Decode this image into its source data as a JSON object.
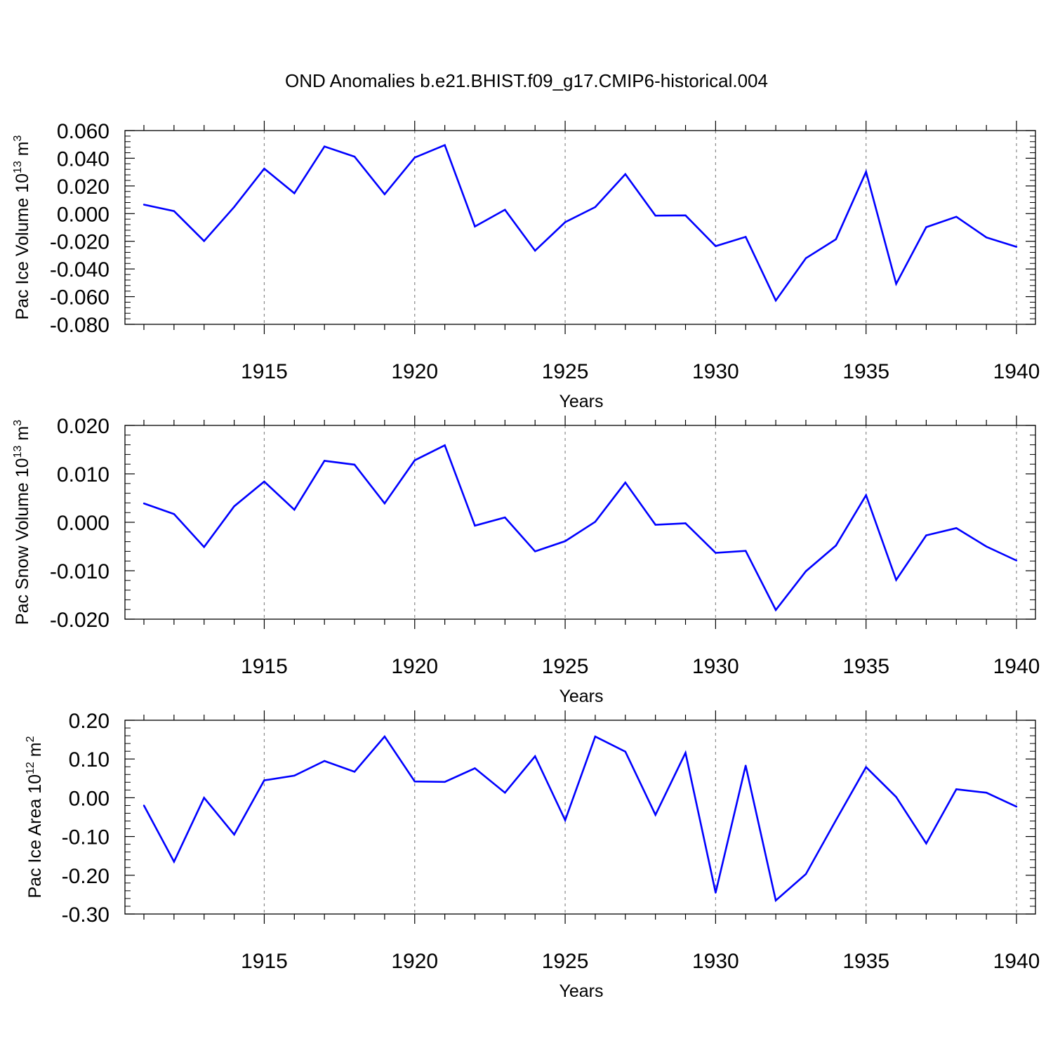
{
  "title": "OND Anomalies b.e21.BHIST.f09_g17.CMIP6-historical.004",
  "line_color": "#0000ff",
  "chart_data": [
    {
      "type": "line",
      "ylabel_main": "Pac Ice Volume 10",
      "ylabel_exp": "13",
      "ylabel_unit": " m",
      "ylabel_unit_exp": "3",
      "xlabel": "Years",
      "xlim": [
        1911,
        1940
      ],
      "ylim": [
        -0.08,
        0.06
      ],
      "yticks": [
        0.06,
        0.04,
        0.02,
        0.0,
        -0.02,
        -0.04,
        -0.06,
        -0.08
      ],
      "ytick_labels": [
        "0.060",
        "0.040",
        "0.020",
        "0.000",
        "-0.020",
        "-0.040",
        "-0.060",
        "-0.080"
      ],
      "xticks": [
        1915,
        1920,
        1925,
        1930,
        1935,
        1940
      ],
      "xtick_labels": [
        "1915",
        "1920",
        "1925",
        "1930",
        "1935",
        "1940"
      ],
      "x": [
        1911,
        1912,
        1913,
        1914,
        1915,
        1916,
        1917,
        1918,
        1919,
        1920,
        1921,
        1922,
        1923,
        1924,
        1925,
        1926,
        1927,
        1928,
        1929,
        1930,
        1931,
        1932,
        1933,
        1934,
        1935,
        1936,
        1937,
        1938,
        1939,
        1940
      ],
      "values": [
        0.0065,
        0.0018,
        -0.0198,
        0.0048,
        0.0325,
        0.0147,
        0.0485,
        0.0412,
        0.014,
        0.0405,
        0.0495,
        -0.0093,
        0.0028,
        -0.0268,
        -0.0062,
        0.0047,
        0.0285,
        -0.0015,
        -0.0013,
        -0.0235,
        -0.0168,
        -0.0628,
        -0.0322,
        -0.0185,
        0.0302,
        -0.0508,
        -0.0098,
        -0.0023,
        -0.0172,
        -0.024
      ]
    },
    {
      "type": "line",
      "ylabel_main": "Pac Snow Volume 10",
      "ylabel_exp": "13",
      "ylabel_unit": " m",
      "ylabel_unit_exp": "3",
      "xlabel": "Years",
      "xlim": [
        1911,
        1940
      ],
      "ylim": [
        -0.02,
        0.02
      ],
      "yticks": [
        0.02,
        0.01,
        0.0,
        -0.01,
        -0.02
      ],
      "ytick_labels": [
        "0.020",
        "0.010",
        "0.000",
        "-0.010",
        "-0.020"
      ],
      "xticks": [
        1915,
        1920,
        1925,
        1930,
        1935,
        1940
      ],
      "xtick_labels": [
        "1915",
        "1920",
        "1925",
        "1930",
        "1935",
        "1940"
      ],
      "x": [
        1911,
        1912,
        1913,
        1914,
        1915,
        1916,
        1917,
        1918,
        1919,
        1920,
        1921,
        1922,
        1923,
        1924,
        1925,
        1926,
        1927,
        1928,
        1929,
        1930,
        1931,
        1932,
        1933,
        1934,
        1935,
        1936,
        1937,
        1938,
        1939,
        1940
      ],
      "values": [
        0.0039,
        0.0017,
        -0.0051,
        0.0033,
        0.0084,
        0.0026,
        0.0127,
        0.0119,
        0.0039,
        0.0128,
        0.0159,
        -0.0007,
        0.001,
        -0.006,
        -0.0039,
        0.0001,
        0.0082,
        -0.0005,
        -0.0002,
        -0.0063,
        -0.0059,
        -0.0181,
        -0.0101,
        -0.0048,
        0.0056,
        -0.0119,
        -0.0027,
        -0.0012,
        -0.005,
        -0.0079
      ]
    },
    {
      "type": "line",
      "ylabel_main": "Pac Ice Area 10",
      "ylabel_exp": "12",
      "ylabel_unit": " m",
      "ylabel_unit_exp": "2",
      "xlabel": "Years",
      "xlim": [
        1911,
        1940
      ],
      "ylim": [
        -0.3,
        0.2
      ],
      "yticks": [
        0.2,
        0.1,
        0.0,
        -0.1,
        -0.2,
        -0.3
      ],
      "ytick_labels": [
        "0.20",
        "0.10",
        "0.00",
        "-0.10",
        "-0.20",
        "-0.30"
      ],
      "xticks": [
        1915,
        1920,
        1925,
        1930,
        1935,
        1940
      ],
      "xtick_labels": [
        "1915",
        "1920",
        "1925",
        "1930",
        "1935",
        "1940"
      ],
      "x": [
        1911,
        1912,
        1913,
        1914,
        1915,
        1916,
        1917,
        1918,
        1919,
        1920,
        1921,
        1922,
        1923,
        1924,
        1925,
        1926,
        1927,
        1928,
        1929,
        1930,
        1931,
        1932,
        1933,
        1934,
        1935,
        1936,
        1937,
        1938,
        1939,
        1940
      ],
      "values": [
        -0.02,
        -0.165,
        0.0,
        -0.095,
        0.045,
        0.057,
        0.095,
        0.067,
        0.158,
        0.042,
        0.041,
        0.076,
        0.013,
        0.107,
        -0.058,
        0.158,
        0.119,
        -0.044,
        0.116,
        -0.245,
        0.083,
        -0.265,
        -0.197,
        -0.058,
        0.079,
        0.002,
        -0.118,
        0.022,
        0.013,
        -0.023
      ]
    }
  ]
}
